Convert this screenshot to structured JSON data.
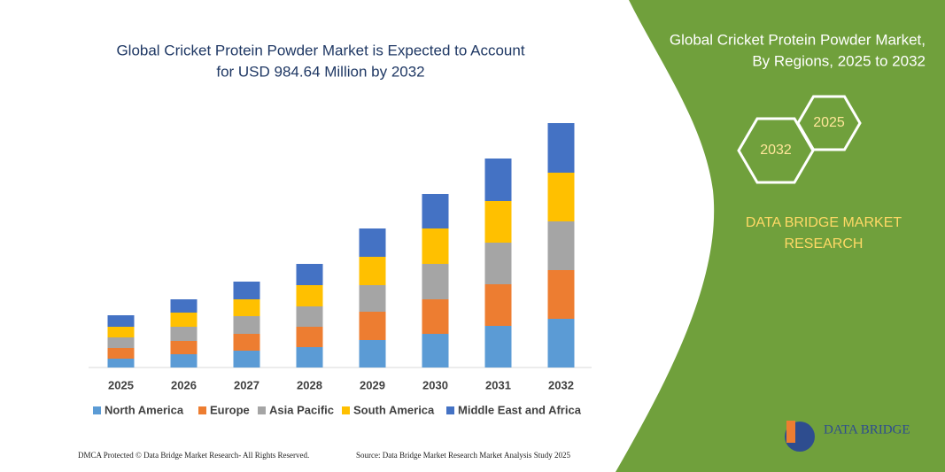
{
  "chart_data": {
    "type": "bar",
    "stacked": true,
    "title": [
      "Global Cricket Protein Powder Market is Expected to Account",
      "for USD 984.64 Million by 2032"
    ],
    "categories": [
      "2025",
      "2026",
      "2027",
      "2028",
      "2029",
      "2030",
      "2031",
      "2032"
    ],
    "series": [
      {
        "name": "North America",
        "color": "#5b9bd5",
        "values": [
          10,
          15,
          19,
          23,
          31,
          38,
          47,
          55
        ]
      },
      {
        "name": "Europe",
        "color": "#ed7d31",
        "values": [
          12,
          15,
          19,
          23,
          32,
          39,
          47,
          55
        ]
      },
      {
        "name": "Asia Pacific",
        "color": "#a5a5a5",
        "values": [
          12,
          16,
          20,
          23,
          30,
          40,
          47,
          55
        ]
      },
      {
        "name": "South America",
        "color": "#ffc000",
        "values": [
          12,
          16,
          19,
          24,
          32,
          40,
          47,
          55
        ]
      },
      {
        "name": "Middle East and Africa",
        "color": "#4472c4",
        "values": [
          13,
          15,
          20,
          24,
          32,
          39,
          48,
          56
        ]
      }
    ],
    "ylim": [
      0,
      280
    ]
  },
  "panel": {
    "title": [
      "Global Cricket Protein Powder Market,",
      "By Regions, 2025 to 2032"
    ],
    "hex_start": "2025",
    "hex_end": "2032",
    "brand": [
      "DATA BRIDGE MARKET",
      "RESEARCH"
    ]
  },
  "logo": "DATA BRIDGE",
  "footer": {
    "left": "DMCA Protected © Data Bridge Market Research- All Rights Reserved.",
    "right": "Source: Data Bridge Market Research Market Analysis Study 2025"
  }
}
